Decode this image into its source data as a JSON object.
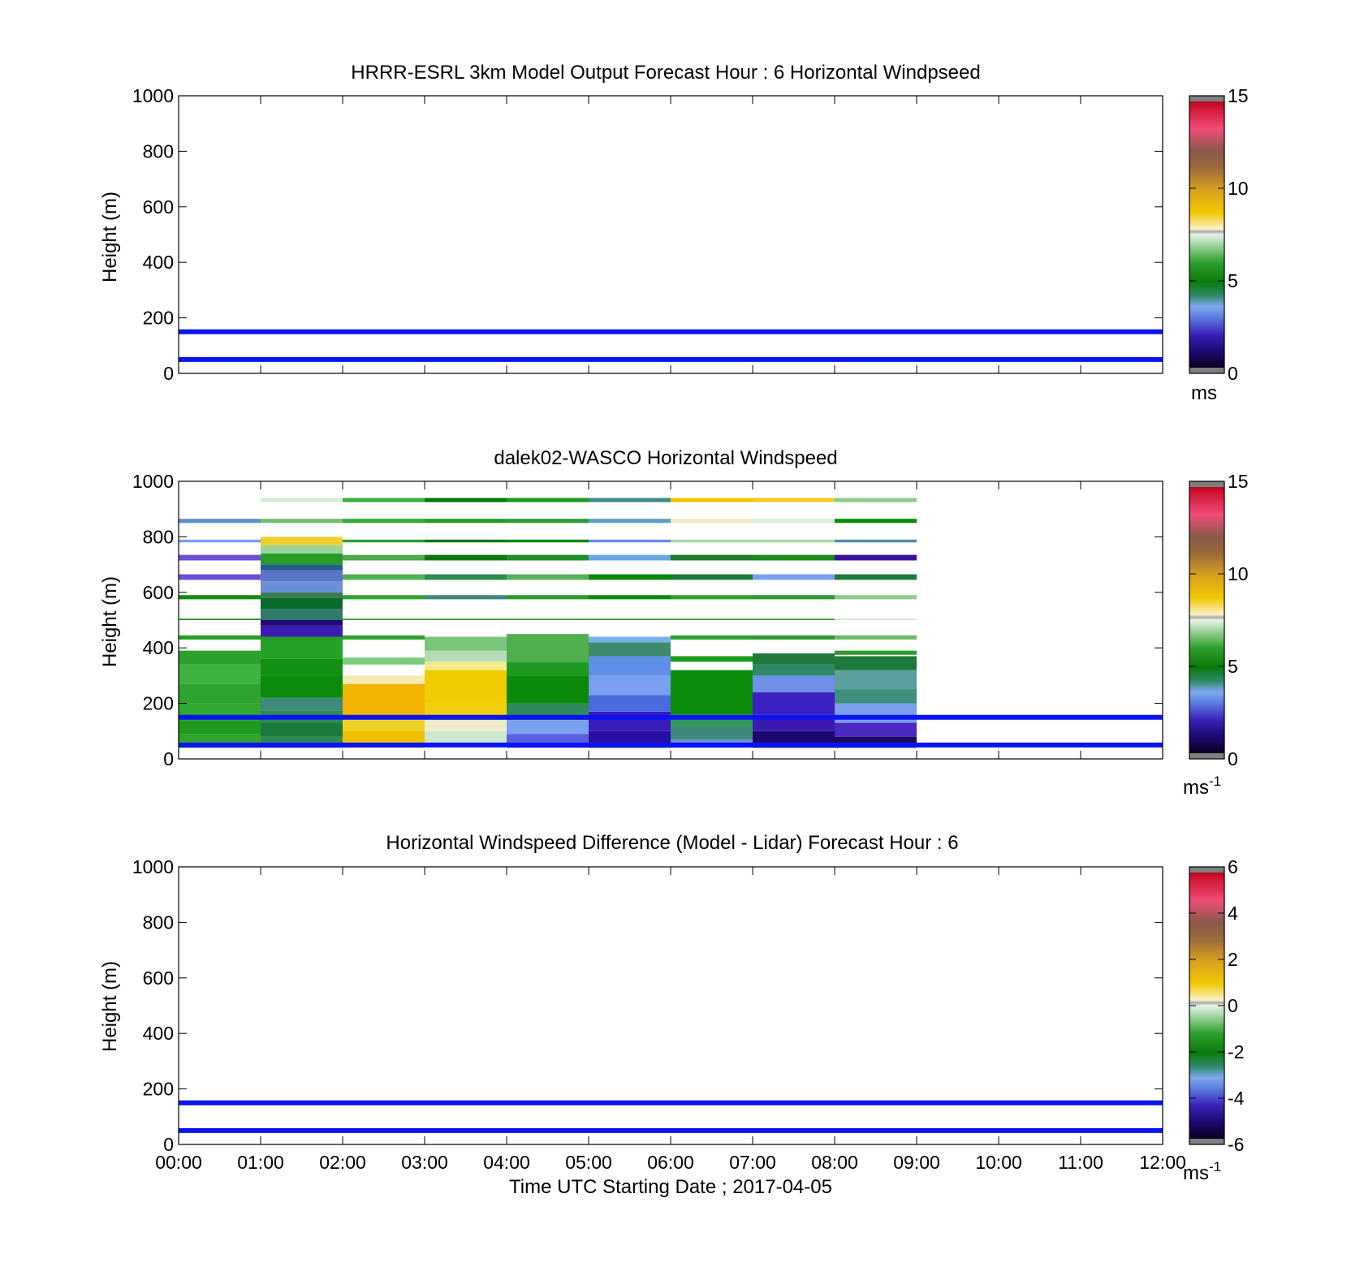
{
  "chart_data": [
    {
      "type": "heatmap",
      "title": "HRRR-ESRL 3km Model Output   Forecast Hour : 6 Horizontal Windpseed",
      "ylabel": "Height (m)",
      "ylim": [
        0,
        1000
      ],
      "yticks": [
        "0",
        "200",
        "400",
        "600",
        "800",
        "1000"
      ],
      "xlim": [
        0,
        12
      ],
      "colorbar": {
        "min": 0,
        "max": 15,
        "ticks": [
          "0",
          "5",
          "10",
          "15"
        ],
        "unit": "ms",
        "unit_sup": ""
      },
      "reference_lines": [
        {
          "y": 150,
          "color": "#0a14f0"
        },
        {
          "y": 50,
          "color": "#0a14f0"
        }
      ],
      "cells": []
    },
    {
      "type": "heatmap",
      "title": "dalek02-WASCO  Horizontal Windspeed",
      "ylabel": "Height (m)",
      "ylim": [
        0,
        1000
      ],
      "yticks": [
        "0",
        "200",
        "400",
        "600",
        "800",
        "1000"
      ],
      "xlim": [
        0,
        12
      ],
      "colorbar": {
        "min": 0,
        "max": 15,
        "ticks": [
          "0",
          "5",
          "10",
          "15"
        ],
        "unit": "ms",
        "unit_sup": "-1"
      },
      "reference_lines": [
        {
          "y": 150,
          "color": "#0a14f0"
        },
        {
          "y": 50,
          "color": "#0a14f0"
        }
      ],
      "cells": [
        {
          "hour": 0,
          "segments": [
            [
              40,
              90,
              "#2da42d"
            ],
            [
              90,
              140,
              "#1f9a1f"
            ],
            [
              140,
              200,
              "#31a831"
            ],
            [
              200,
              270,
              "#2fa32f"
            ],
            [
              270,
              340,
              "#3eb23e"
            ],
            [
              340,
              390,
              "#2ea02e"
            ],
            [
              430,
              445,
              "#239f23"
            ],
            [
              500,
              505,
              "#1a8c1a"
            ],
            [
              575,
              590,
              "#108c10"
            ],
            [
              645,
              665,
              "#6a4fd6"
            ],
            [
              715,
              735,
              "#6a4fd6"
            ],
            [
              780,
              790,
              "#7a9ef0"
            ],
            [
              850,
              865,
              "#5e8fc7"
            ]
          ]
        },
        {
          "hour": 1,
          "segments": [
            [
              40,
              80,
              "#2e8a55"
            ],
            [
              80,
              130,
              "#1a7a3a"
            ],
            [
              130,
              175,
              "#2e8a55"
            ],
            [
              175,
              220,
              "#3f8a7a"
            ],
            [
              220,
              300,
              "#0a8c0a"
            ],
            [
              300,
              360,
              "#129012"
            ],
            [
              360,
              440,
              "#26a026"
            ],
            [
              440,
              480,
              "#3b1bb0"
            ],
            [
              480,
              500,
              "#1e0a70"
            ],
            [
              500,
              540,
              "#2f7a6a"
            ],
            [
              540,
              580,
              "#0a6a2a"
            ],
            [
              580,
              600,
              "#3b7c50"
            ],
            [
              600,
              640,
              "#6b8fd9"
            ],
            [
              640,
              680,
              "#5b75c8"
            ],
            [
              680,
              700,
              "#245c8c"
            ],
            [
              700,
              740,
              "#2a9a2a"
            ],
            [
              740,
              770,
              "#9bd59b"
            ],
            [
              770,
              800,
              "#f0d030"
            ],
            [
              850,
              865,
              "#6fbf6f"
            ],
            [
              925,
              940,
              "#d8ead8"
            ]
          ]
        },
        {
          "hour": 2,
          "segments": [
            [
              40,
              100,
              "#f0c000"
            ],
            [
              100,
              140,
              "#f0d020"
            ],
            [
              140,
              270,
              "#f0b400"
            ],
            [
              270,
              300,
              "#f6eab0"
            ],
            [
              340,
              365,
              "#7ccb7c"
            ],
            [
              430,
              445,
              "#2ea02e"
            ],
            [
              500,
              505,
              "#2a9a2a"
            ],
            [
              575,
              590,
              "#2fa52f"
            ],
            [
              645,
              665,
              "#4fb04f"
            ],
            [
              715,
              735,
              "#4faa4f"
            ],
            [
              780,
              790,
              "#2ea02e"
            ],
            [
              850,
              865,
              "#39a839"
            ],
            [
              925,
              940,
              "#3eae3e"
            ]
          ]
        },
        {
          "hour": 3,
          "segments": [
            [
              50,
              100,
              "#cfe6cf"
            ],
            [
              100,
              140,
              "#f0eccc"
            ],
            [
              140,
              200,
              "#f0d010"
            ],
            [
              200,
              320,
              "#f0cc00"
            ],
            [
              320,
              350,
              "#f4ec8a"
            ],
            [
              350,
              390,
              "#b5ddb5"
            ],
            [
              390,
              440,
              "#7bc67b"
            ],
            [
              500,
              505,
              "#2a9a2a"
            ],
            [
              575,
              590,
              "#3d8a7a"
            ],
            [
              645,
              665,
              "#2e8f4a"
            ],
            [
              715,
              735,
              "#0a7a0a"
            ],
            [
              780,
              790,
              "#0a7a0a"
            ],
            [
              850,
              865,
              "#2a9a2a"
            ],
            [
              925,
              940,
              "#0a7a0a"
            ]
          ]
        },
        {
          "hour": 4,
          "segments": [
            [
              40,
              90,
              "#5a60e0"
            ],
            [
              90,
              140,
              "#7aa0f0"
            ],
            [
              140,
              200,
              "#2e8a5a"
            ],
            [
              200,
              300,
              "#0a8a0a"
            ],
            [
              300,
              350,
              "#1e9a1e"
            ],
            [
              350,
              450,
              "#50b050"
            ],
            [
              500,
              505,
              "#2a9a2a"
            ],
            [
              575,
              590,
              "#2a9a2a"
            ],
            [
              645,
              665,
              "#58b058"
            ],
            [
              715,
              735,
              "#1e8f2e"
            ],
            [
              780,
              790,
              "#0a8a0a"
            ],
            [
              850,
              865,
              "#2e9a3a"
            ],
            [
              925,
              940,
              "#1e9a1e"
            ]
          ]
        },
        {
          "hour": 5,
          "segments": [
            [
              40,
              100,
              "#2a10a0"
            ],
            [
              100,
              170,
              "#3a1ab8"
            ],
            [
              170,
              230,
              "#4a6ae0"
            ],
            [
              230,
              300,
              "#7a9ef0"
            ],
            [
              300,
              370,
              "#5f8fe6"
            ],
            [
              370,
              420,
              "#3e8a6e"
            ],
            [
              420,
              440,
              "#7ab0e8"
            ],
            [
              500,
              505,
              "#2a9a2a"
            ],
            [
              575,
              590,
              "#0a8a0a"
            ],
            [
              645,
              665,
              "#0a8a0a"
            ],
            [
              715,
              735,
              "#6aa6e0"
            ],
            [
              780,
              790,
              "#6a8ee0"
            ],
            [
              850,
              865,
              "#5f9ec0"
            ],
            [
              925,
              940,
              "#3f8a8a"
            ]
          ]
        },
        {
          "hour": 6,
          "segments": [
            [
              40,
              70,
              "#6a8ee0"
            ],
            [
              70,
              120,
              "#3e8a7a"
            ],
            [
              120,
              160,
              "#2e9a5a"
            ],
            [
              160,
              320,
              "#0a8c0a"
            ],
            [
              350,
              370,
              "#1e9a1e"
            ],
            [
              430,
              445,
              "#2ea02e"
            ],
            [
              500,
              505,
              "#2a9a2a"
            ],
            [
              575,
              590,
              "#2ea02e"
            ],
            [
              645,
              665,
              "#1e7a3a"
            ],
            [
              715,
              735,
              "#1e7a2e"
            ],
            [
              780,
              790,
              "#a6d6a6"
            ],
            [
              850,
              865,
              "#f0ecc0"
            ],
            [
              925,
              940,
              "#f0c400"
            ]
          ]
        },
        {
          "hour": 7,
          "segments": [
            [
              40,
              100,
              "#1a0870"
            ],
            [
              100,
              160,
              "#3a1ab0"
            ],
            [
              160,
              240,
              "#3a20c0"
            ],
            [
              240,
              300,
              "#7090e8"
            ],
            [
              300,
              340,
              "#2e8a6a"
            ],
            [
              340,
              380,
              "#1e7a3a"
            ],
            [
              430,
              445,
              "#2e9a2e"
            ],
            [
              500,
              505,
              "#2a9a2a"
            ],
            [
              575,
              590,
              "#2a9a2a"
            ],
            [
              645,
              665,
              "#7a9ef0"
            ],
            [
              715,
              735,
              "#1a8c1a"
            ],
            [
              780,
              790,
              "#a6d6a6"
            ],
            [
              850,
              865,
              "#e0eee0"
            ],
            [
              925,
              940,
              "#f0cc20"
            ]
          ]
        },
        {
          "hour": 8,
          "segments": [
            [
              40,
              80,
              "#1a0a5a"
            ],
            [
              80,
              130,
              "#4a2ac0"
            ],
            [
              130,
              200,
              "#7a9ef0"
            ],
            [
              200,
              250,
              "#3f8f7f"
            ],
            [
              250,
              320,
              "#5ea0a0"
            ],
            [
              320,
              370,
              "#1e7a3a"
            ],
            [
              375,
              390,
              "#2e9a2e"
            ],
            [
              430,
              445,
              "#6abb6a"
            ],
            [
              500,
              505,
              "#d0e8d0"
            ],
            [
              575,
              590,
              "#8ccc8c"
            ],
            [
              645,
              665,
              "#1e7a3a"
            ],
            [
              715,
              735,
              "#3a10a0"
            ],
            [
              780,
              790,
              "#4f8faf"
            ],
            [
              850,
              865,
              "#0a8a0a"
            ],
            [
              925,
              940,
              "#8ccc8c"
            ]
          ]
        }
      ]
    },
    {
      "type": "heatmap",
      "title": "Horizontal Windspeed Difference (Model - Lidar) Forecast Hour : 6",
      "xlabel": "Time UTC  Starting Date ; 2017-04-05",
      "ylabel": "Height (m)",
      "ylim": [
        0,
        1000
      ],
      "yticks": [
        "0",
        "200",
        "400",
        "600",
        "800",
        "1000"
      ],
      "xlim": [
        0,
        12
      ],
      "xticks": [
        "00:00",
        "01:00",
        "02:00",
        "03:00",
        "04:00",
        "05:00",
        "06:00",
        "07:00",
        "08:00",
        "09:00",
        "10:00",
        "11:00",
        "12:00"
      ],
      "colorbar": {
        "min": -6,
        "max": 6,
        "ticks": [
          "-6",
          "-4",
          "-2",
          "0",
          "2",
          "4",
          "6"
        ],
        "unit": "ms",
        "unit_sup": "-1"
      },
      "reference_lines": [
        {
          "y": 150,
          "color": "#0a14f0"
        },
        {
          "y": 50,
          "color": "#0a14f0"
        }
      ],
      "cells": []
    }
  ]
}
